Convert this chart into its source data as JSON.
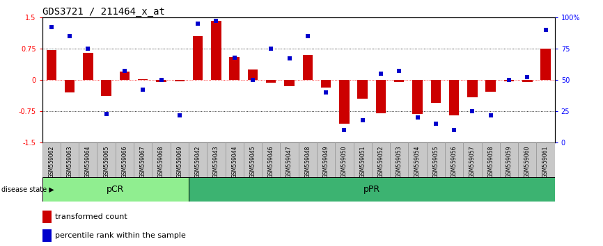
{
  "title": "GDS3721 / 211464_x_at",
  "samples": [
    "GSM559062",
    "GSM559063",
    "GSM559064",
    "GSM559065",
    "GSM559066",
    "GSM559067",
    "GSM559068",
    "GSM559069",
    "GSM559042",
    "GSM559043",
    "GSM559044",
    "GSM559045",
    "GSM559046",
    "GSM559047",
    "GSM559048",
    "GSM559049",
    "GSM559050",
    "GSM559051",
    "GSM559052",
    "GSM559053",
    "GSM559054",
    "GSM559055",
    "GSM559056",
    "GSM559057",
    "GSM559058",
    "GSM559059",
    "GSM559060",
    "GSM559061"
  ],
  "bar_values": [
    0.72,
    -0.3,
    0.65,
    -0.38,
    0.2,
    0.02,
    -0.05,
    -0.03,
    1.05,
    1.42,
    0.55,
    0.25,
    -0.06,
    -0.15,
    0.6,
    -0.18,
    -1.05,
    -0.45,
    -0.8,
    -0.05,
    -0.82,
    -0.55,
    -0.85,
    -0.42,
    -0.28,
    -0.03,
    -0.05,
    0.75
  ],
  "dot_values": [
    92,
    85,
    75,
    23,
    57,
    42,
    50,
    22,
    95,
    97,
    68,
    50,
    75,
    67,
    85,
    40,
    10,
    18,
    55,
    57,
    20,
    15,
    10,
    25,
    22,
    50,
    52,
    90
  ],
  "pcr_count": 8,
  "ppr_count": 20,
  "ylim": [
    -1.5,
    1.5
  ],
  "yticks_left": [
    -1.5,
    -0.75,
    0,
    0.75,
    1.5
  ],
  "yticks_right": [
    0,
    25,
    50,
    75,
    100
  ],
  "bar_color": "#cc0000",
  "dot_color": "#0000cc",
  "pcr_color": "#90ee90",
  "ppr_color": "#3cb371",
  "background_color": "#ffffff",
  "title_fontsize": 10,
  "tick_label_fontsize": 6,
  "legend_fontsize": 8,
  "xtick_bg_color": "#c8c8c8"
}
